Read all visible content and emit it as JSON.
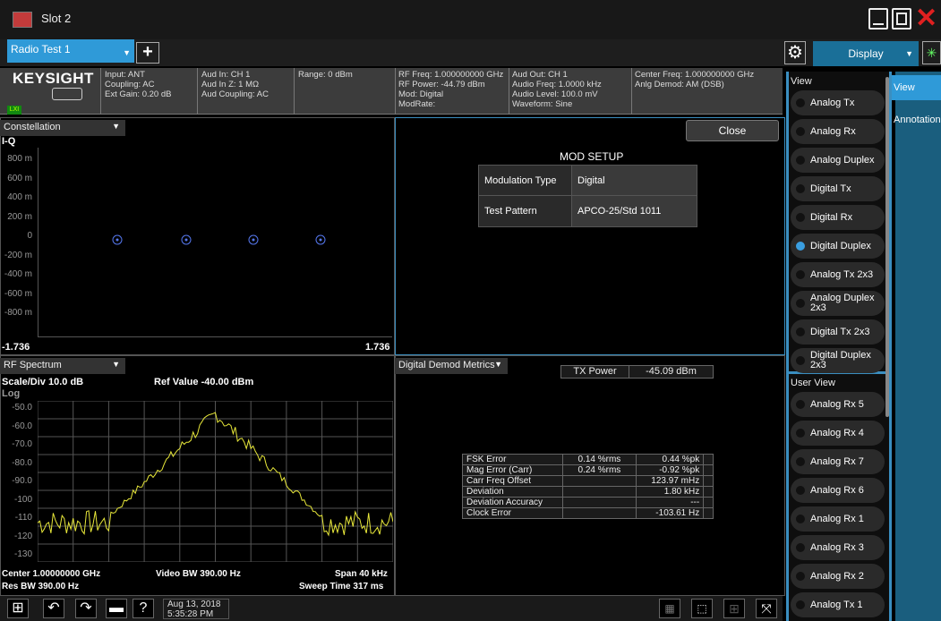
{
  "window": {
    "title": "Slot 2"
  },
  "tabs": {
    "active": "Radio Test 1",
    "display": "Display"
  },
  "status": {
    "brand": "KEYSIGHT",
    "lxi": "LXI",
    "c1": [
      "Input: ANT",
      "Coupling: AC",
      "Ext Gain: 0.20 dB"
    ],
    "c2": [
      "Aud In: CH 1",
      "Aud In Z: 1 MΩ",
      "Aud Coupling: AC"
    ],
    "c3": [
      "Range: 0 dBm"
    ],
    "c4": [
      "RF Freq: 1.000000000 GHz",
      "RF Power: -44.79 dBm",
      "Mod: Digital",
      "ModRate:"
    ],
    "c5": [
      "Aud Out: CH 1",
      "Audio Freq: 1.0000 kHz",
      "Audio Level: 100.0 mV",
      "Waveform: Sine"
    ],
    "c6": [
      "Center Freq: 1.000000000 GHz",
      "Anlg Demod: AM (DSB)"
    ]
  },
  "constellation": {
    "dropdown": "Constellation",
    "title": "I-Q",
    "y_ticks": [
      "800 m",
      "600 m",
      "400 m",
      "200 m",
      "0",
      "-200 m",
      "-400 m",
      "-600 m",
      "-800 m"
    ],
    "x_min": "-1.736",
    "x_max": "1.736"
  },
  "mod_setup": {
    "close": "Close",
    "title": "MOD SETUP",
    "rows": [
      {
        "label": "Modulation Type",
        "value": "Digital"
      },
      {
        "label": "Test Pattern",
        "value": "APCO-25/Std 1011"
      }
    ]
  },
  "rf_spectrum": {
    "dropdown": "RF Spectrum",
    "scale": "Scale/Div 10.0 dB",
    "ref": "Ref Value -40.00 dBm",
    "log": "Log",
    "y_ticks": [
      "-50.0",
      "-60.0",
      "-70.0",
      "-80.0",
      "-90.0",
      "-100",
      "-110",
      "-120",
      "-130"
    ],
    "center": "Center 1.00000000 GHz",
    "vbw": "Video BW 390.00 Hz",
    "span": "Span 40 kHz",
    "rbw": "Res BW 390.00 Hz",
    "sweep": "Sweep Time 317 ms",
    "trace_color": "#e8e83a"
  },
  "metrics": {
    "dropdown": "Digital Demod Metrics",
    "tx_label": "TX Power",
    "tx_value": "-45.09 dBm",
    "rows": [
      {
        "name": "FSK Error",
        "a": "0.14 %rms",
        "b": "0.44 %pk"
      },
      {
        "name": "Mag Error (Carr)",
        "a": "0.24 %rms",
        "b": "-0.92 %pk"
      },
      {
        "name": "Carr Freq Offset",
        "a": "",
        "b": "123.97 mHz"
      },
      {
        "name": "Deviation",
        "a": "",
        "b": "1.80 kHz"
      },
      {
        "name": "Deviation Accuracy",
        "a": "",
        "b": "---"
      },
      {
        "name": "Clock Error",
        "a": "",
        "b": "-103.61 Hz"
      }
    ]
  },
  "menu": {
    "view_header": "View",
    "items": [
      "Analog Tx",
      "Analog Rx",
      "Analog Duplex",
      "Digital Tx",
      "Digital Rx",
      "Digital Duplex",
      "Analog Tx 2x3",
      "Analog Duplex 2x3",
      "Digital Tx 2x3",
      "Digital Duplex 2x3"
    ],
    "selected": "Digital Duplex",
    "user_header": "User View",
    "user_items": [
      "Analog Rx 5",
      "Analog Rx 4",
      "Analog Rx 7",
      "Analog Rx 6",
      "Analog Rx 1",
      "Analog Rx 3",
      "Analog Rx 2",
      "Analog Tx 1"
    ],
    "side_view": "View",
    "side_annotation": "Annotation"
  },
  "taskbar": {
    "date": "Aug 13, 2018",
    "time": "5:35:28 PM"
  }
}
